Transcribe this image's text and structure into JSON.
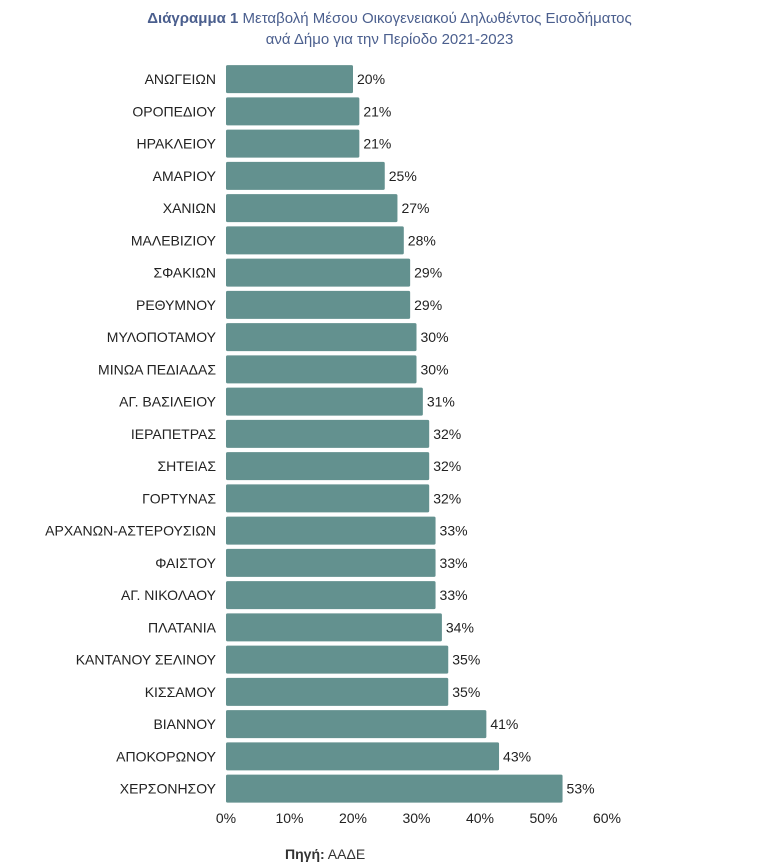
{
  "chart_data": {
    "type": "bar",
    "orientation": "horizontal",
    "title_prefix": "Διάγραμμα  1",
    "title_line1": "Μεταβολή Μέσου Οικογενειακού Δηλωθέντος Εισοδήματος",
    "title_line2": "ανά Δήμο για την Περίοδο 2021-2023",
    "categories": [
      "ΑΝΩΓΕΙΩΝ",
      "ΟΡΟΠΕΔΙΟΥ",
      "ΗΡΑΚΛΕΙΟΥ",
      "ΑΜΑΡΙΟΥ",
      "ΧΑΝΙΩΝ",
      "ΜΑΛΕΒΙΖΙΟΥ",
      "ΣΦΑΚΙΩΝ",
      "ΡΕΘΥΜΝΟΥ",
      "ΜΥΛΟΠΟΤΑΜΟΥ",
      "ΜΙΝΩΑ ΠΕΔΙΑΔΑΣ",
      "ΑΓ. ΒΑΣΙΛΕΙΟΥ",
      "ΙΕΡΑΠΕΤΡΑΣ",
      "ΣΗΤΕΙΑΣ",
      "ΓΟΡΤΥΝΑΣ",
      "ΑΡΧΑΝΩΝ-ΑΣΤΕΡΟΥΣΙΩΝ",
      "ΦΑΙΣΤΟΥ",
      "ΑΓ. ΝΙΚΟΛΑΟΥ",
      "ΠΛΑΤΑΝΙΑ",
      "ΚΑΝΤΑΝΟΥ ΣΕΛΙΝΟΥ",
      "ΚΙΣΣΑΜΟΥ",
      "ΒΙΑΝΝΟΥ",
      "ΑΠΟΚΟΡΩΝΟΥ",
      "ΧΕΡΣΟΝΗΣΟΥ"
    ],
    "values": [
      20,
      21,
      21,
      25,
      27,
      28,
      29,
      29,
      30,
      30,
      31,
      32,
      32,
      32,
      33,
      33,
      33,
      34,
      35,
      35,
      41,
      43,
      53
    ],
    "data_labels": [
      "20%",
      "21%",
      "21%",
      "25%",
      "27%",
      "28%",
      "29%",
      "29%",
      "30%",
      "30%",
      "31%",
      "32%",
      "32%",
      "32%",
      "33%",
      "33%",
      "33%",
      "34%",
      "35%",
      "35%",
      "41%",
      "43%",
      "53%"
    ],
    "xlim": [
      0,
      60
    ],
    "xticks": [
      "0%",
      "10%",
      "20%",
      "30%",
      "40%",
      "50%",
      "60%"
    ],
    "grid": false,
    "bar_color": "#63918f",
    "source_label": "Πηγή:",
    "source_value": "ΑΑΔΕ"
  }
}
